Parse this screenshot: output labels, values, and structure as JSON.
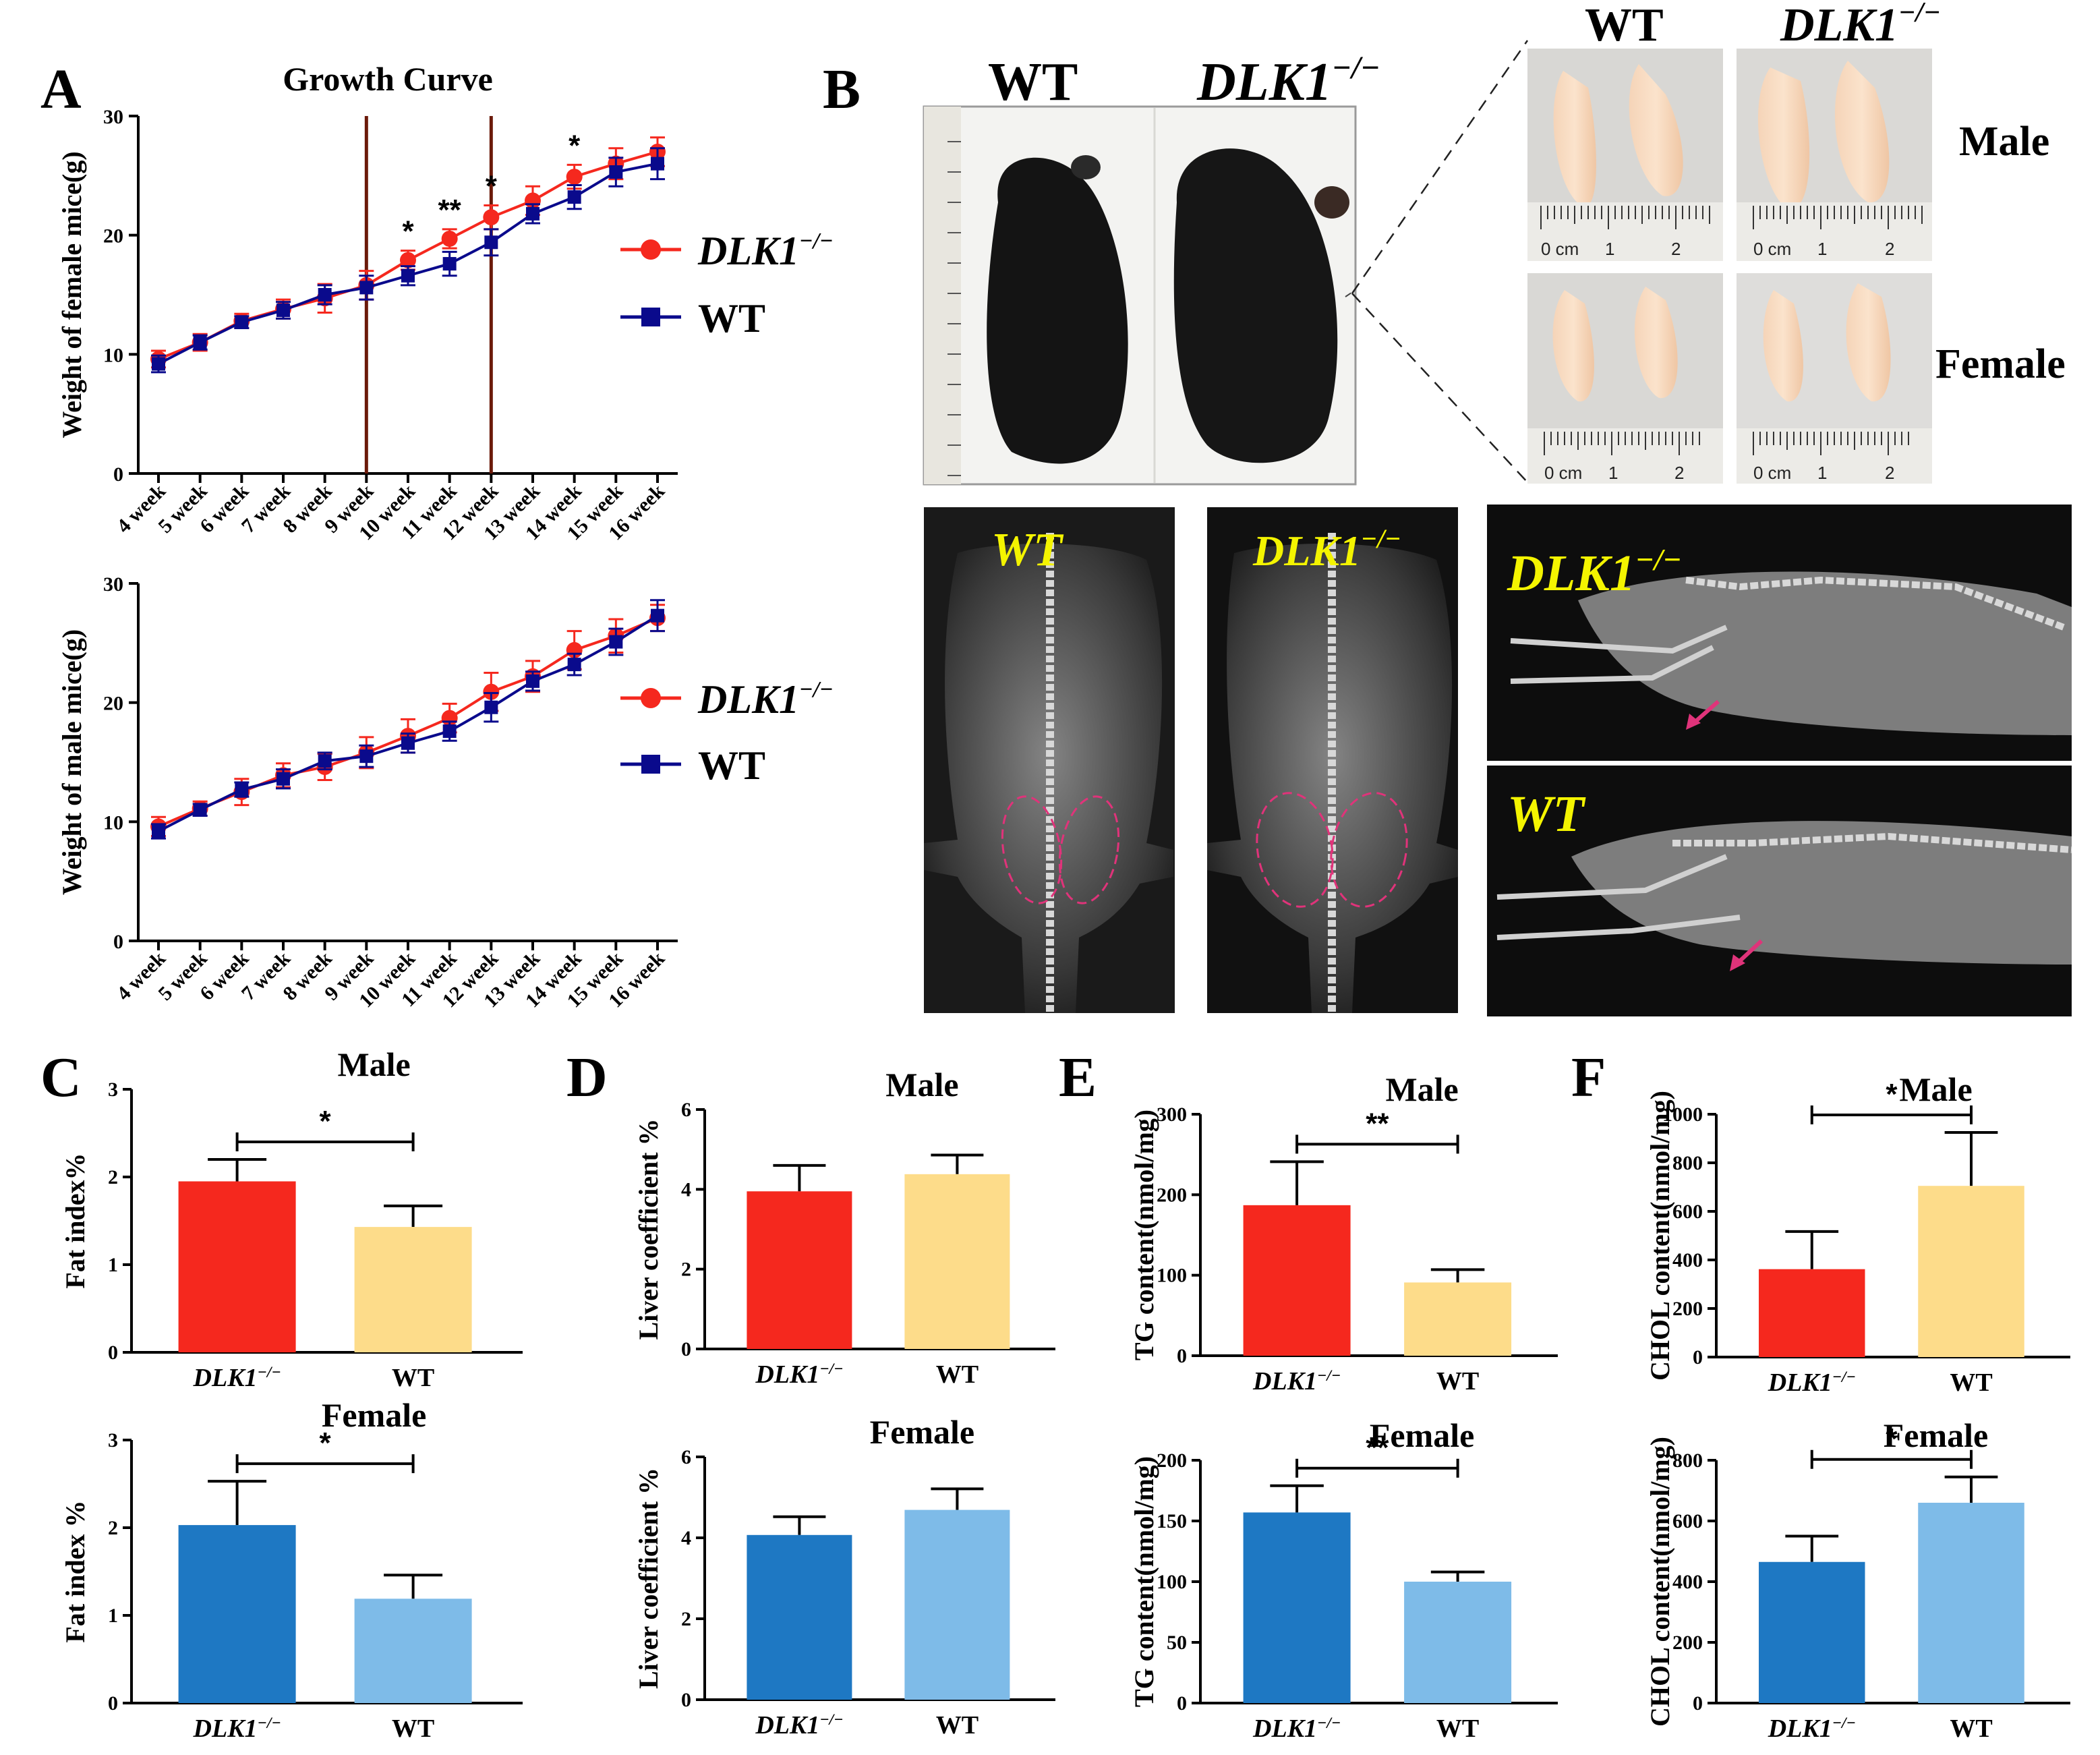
{
  "panels": {
    "A": "A",
    "B": "B",
    "C": "C",
    "D": "D",
    "E": "E",
    "F": "F"
  },
  "colors": {
    "red": "#f5281e",
    "navy": "#0a0a8c",
    "yellow": "#fddc8a",
    "darkblue": "#1e78c3",
    "lightblue": "#7ebbe8",
    "brown": "#6b1a0a",
    "pink": "#e0337a",
    "xray_label": "#f4f400"
  },
  "photo": {
    "wt": "WT",
    "ko": "DLK1",
    "sup": "−/−",
    "male": "Male",
    "female": "Female",
    "cm": "0 cm",
    "ruler_1": "1",
    "ruler_2": "2"
  },
  "chart_data": [
    {
      "id": "A-female",
      "type": "line",
      "title": "Growth Curve",
      "ylabel": "Weight of female mice(g)",
      "ylim": [
        0,
        30
      ],
      "yticks": [
        0,
        10,
        20,
        30
      ],
      "categories": [
        "4 week",
        "5 week",
        "6 week",
        "7 week",
        "8 week",
        "9 week",
        "10 week",
        "11 week",
        "12 week",
        "13 week",
        "14 week",
        "15 week",
        "16 week"
      ],
      "series": [
        {
          "name": "DLK1−/−",
          "color": "#f5281e",
          "marker": "circle",
          "values": [
            9.6,
            11.0,
            12.8,
            13.8,
            14.7,
            15.8,
            17.9,
            19.7,
            21.5,
            22.9,
            24.9,
            26.0,
            27.0
          ],
          "errors": [
            0.7,
            0.7,
            0.6,
            0.8,
            1.2,
            1.2,
            0.8,
            0.8,
            1.0,
            1.2,
            1.0,
            1.3,
            1.2
          ]
        },
        {
          "name": "WT",
          "color": "#0a0a8c",
          "marker": "square",
          "values": [
            9.2,
            11.0,
            12.7,
            13.7,
            15.0,
            15.6,
            16.6,
            17.6,
            19.4,
            21.8,
            23.2,
            25.3,
            26.0
          ],
          "errors": [
            0.7,
            0.6,
            0.5,
            0.7,
            0.8,
            1.0,
            0.8,
            1.0,
            1.1,
            0.8,
            1.0,
            1.2,
            1.3
          ]
        }
      ],
      "significance": [
        {
          "category": "10 week",
          "label": "*"
        },
        {
          "category": "11 week",
          "label": "**"
        },
        {
          "category": "12 week",
          "label": "*"
        },
        {
          "category": "14 week",
          "label": "*"
        }
      ],
      "vlines": [
        "9 week",
        "12 week"
      ]
    },
    {
      "id": "A-male",
      "type": "line",
      "title": "",
      "ylabel": "Weight of male mice(g)",
      "ylim": [
        0,
        30
      ],
      "yticks": [
        0,
        10,
        20,
        30
      ],
      "categories": [
        "4 week",
        "5 week",
        "6 week",
        "7 week",
        "8 week",
        "9 week",
        "10 week",
        "11 week",
        "12 week",
        "13 week",
        "14 week",
        "15 week",
        "16 week"
      ],
      "series": [
        {
          "name": "DLK1−/−",
          "color": "#f5281e",
          "marker": "circle",
          "values": [
            9.6,
            11.1,
            12.5,
            13.9,
            14.6,
            15.8,
            17.2,
            18.7,
            20.9,
            22.2,
            24.4,
            25.6,
            27.1
          ],
          "errors": [
            0.8,
            0.6,
            1.1,
            1.0,
            1.1,
            1.3,
            1.4,
            1.2,
            1.6,
            1.3,
            1.6,
            1.4,
            1.1
          ]
        },
        {
          "name": "WT",
          "color": "#0a0a8c",
          "marker": "square",
          "values": [
            9.2,
            11.0,
            12.7,
            13.6,
            15.1,
            15.5,
            16.6,
            17.6,
            19.6,
            21.8,
            23.2,
            25.1,
            27.3
          ],
          "errors": [
            0.6,
            0.5,
            0.6,
            0.8,
            0.7,
            0.9,
            0.8,
            0.8,
            1.2,
            0.8,
            0.9,
            1.1,
            1.3
          ]
        }
      ],
      "significance": [],
      "vlines": []
    },
    {
      "id": "C-male",
      "panel": "C",
      "type": "bar",
      "title": "Male",
      "ylabel": "Fat index%",
      "ylim": [
        0,
        3
      ],
      "yticks": [
        0,
        1,
        2,
        3
      ],
      "categories": [
        "DLK1−/−",
        "WT"
      ],
      "values": [
        1.95,
        1.43
      ],
      "errors": [
        0.25,
        0.24
      ],
      "colors": [
        "#f5281e",
        "#fddc8a"
      ],
      "sig": "*"
    },
    {
      "id": "C-female",
      "panel": "C",
      "type": "bar",
      "title": "Female",
      "ylabel": "Fat index %",
      "ylim": [
        0,
        3
      ],
      "yticks": [
        0,
        1,
        2,
        3
      ],
      "categories": [
        "DLK1−/−",
        "WT"
      ],
      "values": [
        2.03,
        1.19
      ],
      "errors": [
        0.5,
        0.27
      ],
      "colors": [
        "#1e78c3",
        "#7ebbe8"
      ],
      "sig": "*"
    },
    {
      "id": "D-male",
      "panel": "D",
      "type": "bar",
      "title": "Male",
      "ylabel": "Liver coefficient %",
      "ylim": [
        0,
        6
      ],
      "yticks": [
        0,
        2,
        4,
        6
      ],
      "categories": [
        "DLK1−/−",
        "WT"
      ],
      "values": [
        3.95,
        4.38
      ],
      "errors": [
        0.65,
        0.48
      ],
      "colors": [
        "#f5281e",
        "#fddc8a"
      ],
      "sig": ""
    },
    {
      "id": "D-female",
      "panel": "D",
      "type": "bar",
      "title": "Female",
      "ylabel": "Liver coefficient %",
      "ylim": [
        0,
        6
      ],
      "yticks": [
        0,
        2,
        4,
        6
      ],
      "categories": [
        "DLK1−/−",
        "WT"
      ],
      "values": [
        4.07,
        4.69
      ],
      "errors": [
        0.45,
        0.52
      ],
      "colors": [
        "#1e78c3",
        "#7ebbe8"
      ],
      "sig": ""
    },
    {
      "id": "E-male",
      "panel": "E",
      "type": "bar",
      "title": "Male",
      "ylabel": "TG content(nmol/mg)",
      "ylim": [
        0,
        300
      ],
      "yticks": [
        0,
        100,
        200,
        300
      ],
      "categories": [
        "DLK1−/−",
        "WT"
      ],
      "values": [
        187,
        91
      ],
      "errors": [
        54,
        16
      ],
      "colors": [
        "#f5281e",
        "#fddc8a"
      ],
      "sig": "**"
    },
    {
      "id": "E-female",
      "panel": "E",
      "type": "bar",
      "title": "Female",
      "ylabel": "TG content(nmol/mg)",
      "ylim": [
        0,
        200
      ],
      "yticks": [
        0,
        50,
        100,
        150,
        200
      ],
      "categories": [
        "DLK1−/−",
        "WT"
      ],
      "values": [
        157,
        100
      ],
      "errors": [
        22,
        8
      ],
      "colors": [
        "#1e78c3",
        "#7ebbe8"
      ],
      "sig": "**"
    },
    {
      "id": "F-male",
      "panel": "F",
      "type": "bar",
      "title": "Male",
      "ylabel": "CHOL content(nmol/mg)",
      "ylim": [
        0,
        1000
      ],
      "yticks": [
        0,
        200,
        400,
        600,
        800,
        1000
      ],
      "categories": [
        "DLK1−/−",
        "WT"
      ],
      "values": [
        362,
        705
      ],
      "errors": [
        155,
        220
      ],
      "colors": [
        "#f5281e",
        "#fddc8a"
      ],
      "sig": "*"
    },
    {
      "id": "F-female",
      "panel": "F",
      "type": "bar",
      "title": "Female",
      "ylabel": "CHOL content(nmol/mg)",
      "ylim": [
        0,
        800
      ],
      "yticks": [
        0,
        200,
        400,
        600,
        800
      ],
      "categories": [
        "DLK1−/−",
        "WT"
      ],
      "values": [
        465,
        660
      ],
      "errors": [
        85,
        85
      ],
      "colors": [
        "#1e78c3",
        "#7ebbe8"
      ],
      "sig": "*"
    }
  ]
}
